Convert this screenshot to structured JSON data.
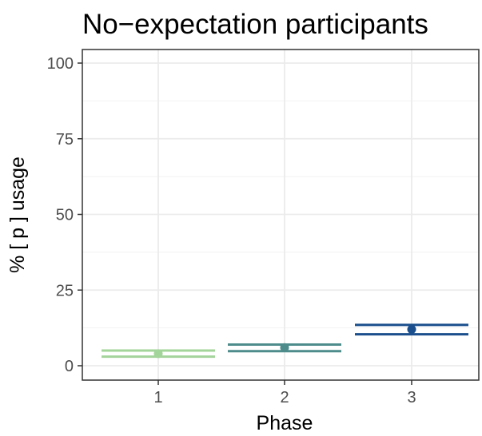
{
  "chart_data": {
    "type": "scatter",
    "title": "No−expectation participants",
    "xlabel": "Phase",
    "ylabel": "% [ p ] usage",
    "categories": [
      "1",
      "2",
      "3"
    ],
    "ylim": [
      0,
      100
    ],
    "yticks": [
      0,
      25,
      50,
      75,
      100
    ],
    "grid": true,
    "legend": "none",
    "points": [
      {
        "x": "1",
        "y": 4,
        "ci_low": 3,
        "ci_high": 5,
        "color": "#a3d49a"
      },
      {
        "x": "2",
        "y": 6,
        "ci_low": 4.8,
        "ci_high": 7,
        "color": "#4e8c8c"
      },
      {
        "x": "3",
        "y": 12,
        "ci_low": 10.4,
        "ci_high": 13.5,
        "color": "#1a4e8c"
      }
    ]
  }
}
